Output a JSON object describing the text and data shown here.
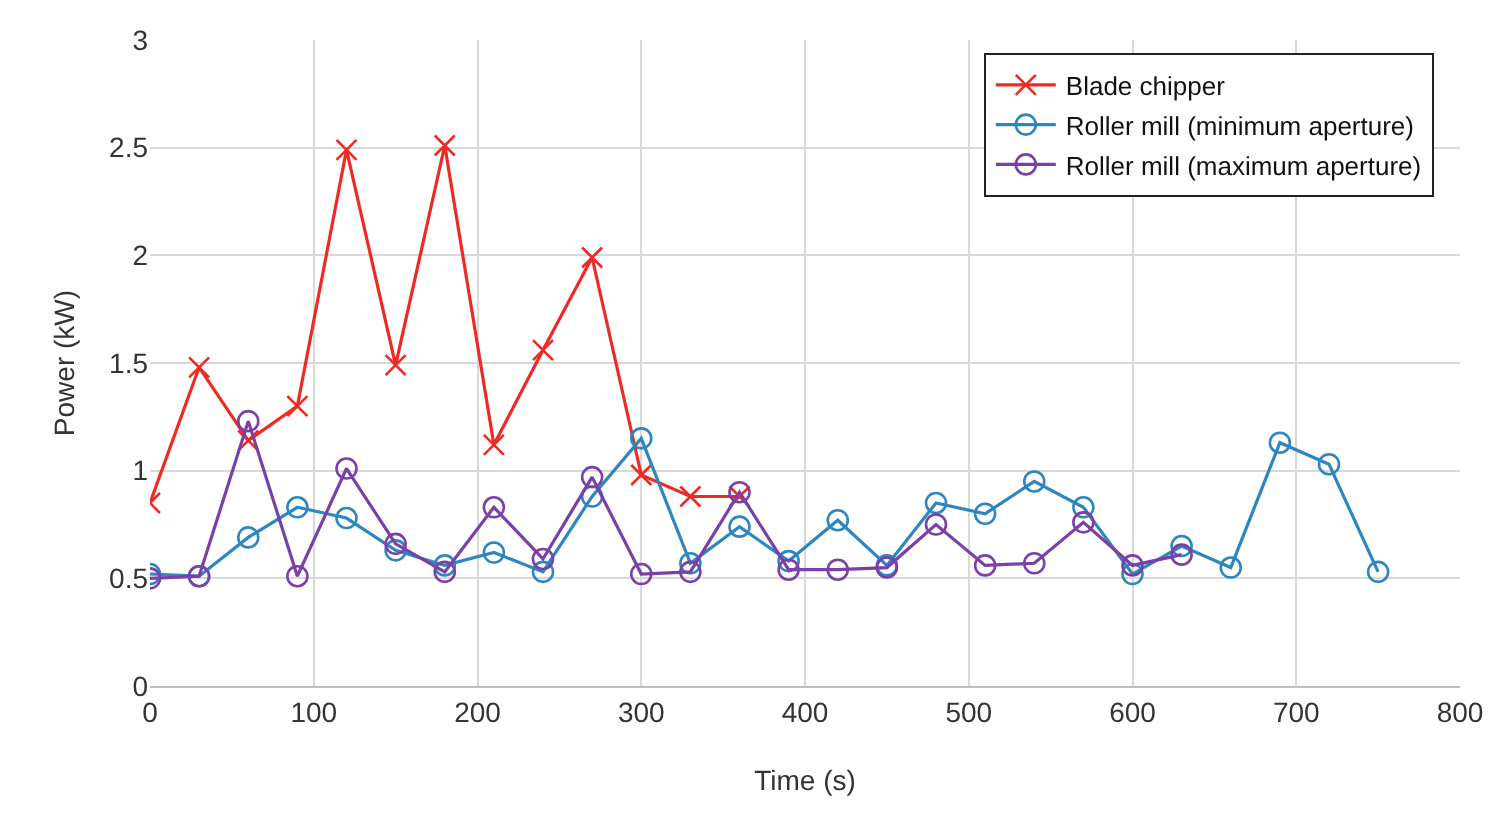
{
  "chart_data": {
    "type": "line",
    "xlabel": "Time (s)",
    "ylabel": "Power (kW)",
    "xlim": [
      0,
      800
    ],
    "xticks": [
      0,
      100,
      200,
      300,
      400,
      500,
      600,
      700,
      800
    ],
    "ylim": [
      0,
      3
    ],
    "yticks": [
      0,
      0.5,
      1,
      1.5,
      2,
      2.5,
      3
    ],
    "grid": true,
    "legend": "top right",
    "line_style": "solid",
    "series": [
      {
        "name": "Blade chipper",
        "color": "#ee2a24",
        "marker": "cross",
        "x": [
          0,
          30,
          60,
          90,
          120,
          150,
          180,
          210,
          240,
          270,
          300,
          330,
          360
        ],
        "values": [
          0.85,
          1.48,
          1.14,
          1.3,
          2.49,
          1.49,
          2.51,
          1.12,
          1.56,
          1.99,
          0.98,
          0.88,
          0.88
        ]
      },
      {
        "name": "Roller mill (minimum aperture)",
        "color": "#2e86c1",
        "marker": "circle",
        "x": [
          0,
          30,
          60,
          90,
          120,
          150,
          180,
          210,
          240,
          270,
          300,
          330,
          360,
          390,
          420,
          450,
          480,
          510,
          540,
          570,
          600,
          630,
          660,
          690,
          720,
          750
        ],
        "values": [
          0.52,
          0.51,
          0.69,
          0.83,
          0.78,
          0.63,
          0.56,
          0.62,
          0.53,
          0.88,
          1.15,
          0.57,
          0.74,
          0.58,
          0.77,
          0.56,
          0.85,
          0.8,
          0.95,
          0.83,
          0.52,
          0.65,
          0.55,
          1.13,
          1.03,
          0.53
        ]
      },
      {
        "name": "Roller mill (maximum aperture)",
        "color": "#7b3fa8",
        "marker": "circle",
        "x": [
          0,
          30,
          60,
          90,
          120,
          150,
          180,
          210,
          240,
          270,
          300,
          330,
          360,
          390,
          420,
          450,
          480,
          510,
          540,
          570,
          600,
          630
        ],
        "values": [
          0.5,
          0.51,
          1.23,
          0.51,
          1.01,
          0.66,
          0.53,
          0.83,
          0.59,
          0.97,
          0.52,
          0.53,
          0.9,
          0.54,
          0.54,
          0.55,
          0.75,
          0.56,
          0.57,
          0.76,
          0.56,
          0.61
        ]
      }
    ]
  }
}
